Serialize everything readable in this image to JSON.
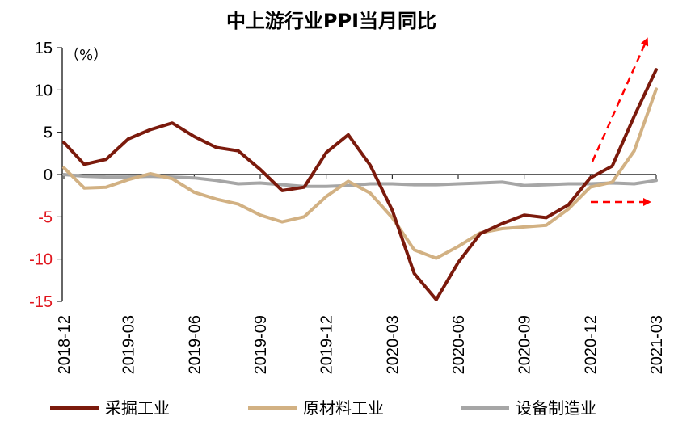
{
  "chart_data": {
    "type": "line",
    "title": "中上游行业PPI当月同比",
    "unit_label": "（%）",
    "ylim": [
      -15,
      15
    ],
    "y_ticks": [
      {
        "value": 15,
        "label": "15"
      },
      {
        "value": 10,
        "label": "10"
      },
      {
        "value": 5,
        "label": "5"
      },
      {
        "value": 0,
        "label": "0"
      },
      {
        "value": -5,
        "label": "-5"
      },
      {
        "value": -10,
        "label": "-10"
      },
      {
        "value": -15,
        "label": "-15"
      }
    ],
    "negative_tick_color": "#e0141c",
    "x": [
      "2018-12",
      "2019-01",
      "2019-02",
      "2019-03",
      "2019-04",
      "2019-05",
      "2019-06",
      "2019-07",
      "2019-08",
      "2019-09",
      "2019-10",
      "2019-11",
      "2019-12",
      "2020-01",
      "2020-02",
      "2020-03",
      "2020-04",
      "2020-05",
      "2020-06",
      "2020-07",
      "2020-08",
      "2020-09",
      "2020-10",
      "2020-11",
      "2020-12",
      "2021-01",
      "2021-02",
      "2021-03"
    ],
    "x_tick_labels": [
      "2018-12",
      "2019-03",
      "2019-06",
      "2019-09",
      "2019-12",
      "2020-03",
      "2020-06",
      "2020-09",
      "2020-12",
      "2021-03"
    ],
    "series": [
      {
        "name": "采掘工业",
        "color": "#7b1a0c",
        "values": [
          3.8,
          1.2,
          1.8,
          4.2,
          5.3,
          6.1,
          4.5,
          3.2,
          2.8,
          0.6,
          -1.9,
          -1.5,
          2.6,
          4.7,
          1.1,
          -4.2,
          -11.7,
          -14.8,
          -10.4,
          -7.0,
          -5.8,
          -4.8,
          -5.1,
          -3.6,
          -0.4,
          1.0,
          6.9,
          12.4
        ]
      },
      {
        "name": "原材料工业",
        "color": "#d2b183",
        "values": [
          0.8,
          -1.6,
          -1.5,
          -0.6,
          0.1,
          -0.5,
          -2.1,
          -2.9,
          -3.5,
          -4.8,
          -5.6,
          -5.0,
          -2.6,
          -0.8,
          -2.2,
          -5.1,
          -8.9,
          -9.9,
          -8.5,
          -6.9,
          -6.4,
          -6.2,
          -6.0,
          -4.1,
          -1.5,
          -0.9,
          2.8,
          10.1
        ]
      },
      {
        "name": "设备制造业",
        "color": "#a6a6a6",
        "values": [
          0.0,
          -0.2,
          -0.3,
          -0.3,
          -0.2,
          -0.3,
          -0.4,
          -0.7,
          -1.1,
          -1.0,
          -1.2,
          -1.4,
          -1.4,
          -1.3,
          -1.1,
          -1.1,
          -1.2,
          -1.2,
          -1.1,
          -1.0,
          -0.9,
          -1.3,
          -1.2,
          -1.1,
          -1.1,
          -1.0,
          -1.1,
          -0.7
        ]
      }
    ],
    "annotations": [
      {
        "type": "dashed-arrow",
        "direction": "up-right",
        "color": "#ff0000"
      },
      {
        "type": "dashed-arrow",
        "direction": "right",
        "color": "#ff0000"
      }
    ],
    "legend_position": "bottom",
    "grid": false
  }
}
